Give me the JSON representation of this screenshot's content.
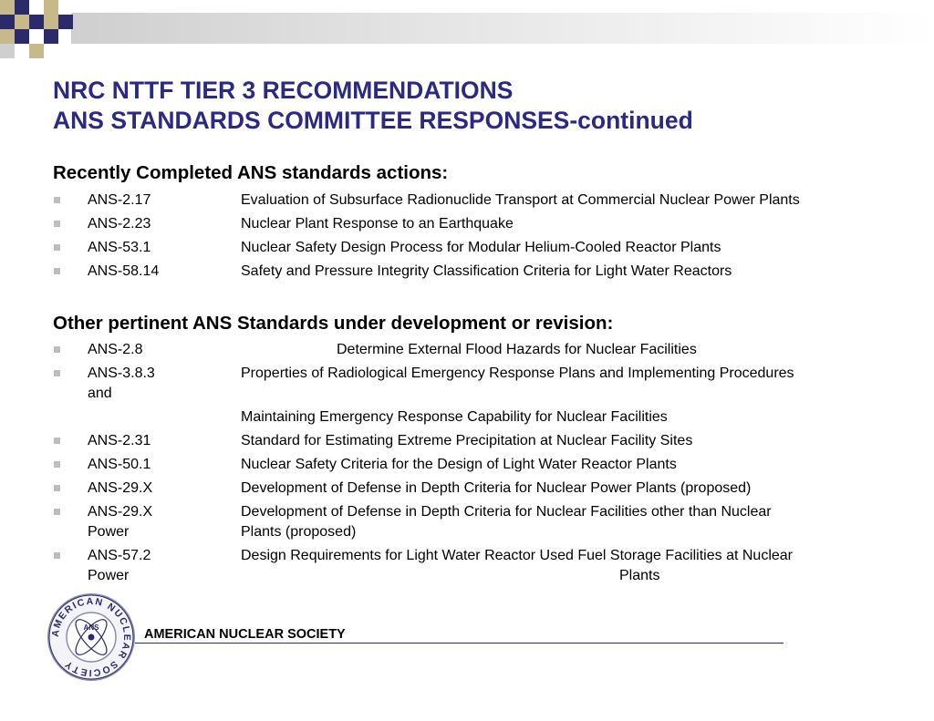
{
  "title": {
    "line1": "NRC NTTF TIER 3 RECOMMENDATIONS",
    "line2": "ANS STANDARDS COMMITTEE RESPONSES-continued"
  },
  "completed": {
    "heading": "Recently Completed ANS standards actions:",
    "items": [
      {
        "code": "ANS-2.17",
        "desc": "Evaluation of Subsurface Radionuclide Transport at Commercial Nuclear Power Plants"
      },
      {
        "code": "ANS-2.23",
        "desc": "Nuclear Plant Response to an Earthquake"
      },
      {
        "code": "ANS-53.1",
        "desc": "Nuclear Safety Design Process for Modular Helium-Cooled Reactor Plants"
      },
      {
        "code": "ANS-58.14",
        "desc": "Safety and Pressure Integrity Classification Criteria for Light Water Reactors"
      }
    ]
  },
  "development": {
    "heading": "Other pertinent ANS Standards under development or revision:",
    "items": [
      {
        "code": "ANS-2.8",
        "desc": "Determine External Flood Hazards for Nuclear Facilities"
      },
      {
        "code": "ANS-3.8.3",
        "desc": "Properties of Radiological Emergency Response Plans and Implementing Procedures",
        "code_cont": "and",
        "desc_cont": "Maintaining Emergency Response Capability for Nuclear Facilities"
      },
      {
        "code": "ANS-2.31",
        "desc": "Standard for Estimating Extreme Precipitation at Nuclear Facility Sites"
      },
      {
        "code": "ANS-50.1",
        "desc": "Nuclear Safety Criteria for the Design of Light Water Reactor Plants"
      },
      {
        "code": "ANS-29.X",
        "desc": "Development of Defense in Depth Criteria for Nuclear Power Plants (proposed)"
      },
      {
        "code": "ANS-29.X",
        "desc": "Development of Defense in Depth Criteria for Nuclear Facilities other than Nuclear",
        "code_cont": "Power",
        "desc_cont": "Plants (proposed)"
      },
      {
        "code": "ANS-57.2",
        "desc": "Design Requirements for Light Water Reactor Used Fuel Storage Facilities at Nuclear",
        "code_cont": "Power",
        "desc_cont": "Plants"
      }
    ]
  },
  "footer": {
    "org": "AMERICAN NUCLEAR SOCIETY",
    "logo_text": "AMERICAN NUCLEAR SOCIETY",
    "logo_letters": "ANS"
  },
  "colors": {
    "title": "#2b2a82",
    "navy": "#2b2a6b",
    "gold": "#c9b98a",
    "bullet": "#bdbdbd"
  }
}
